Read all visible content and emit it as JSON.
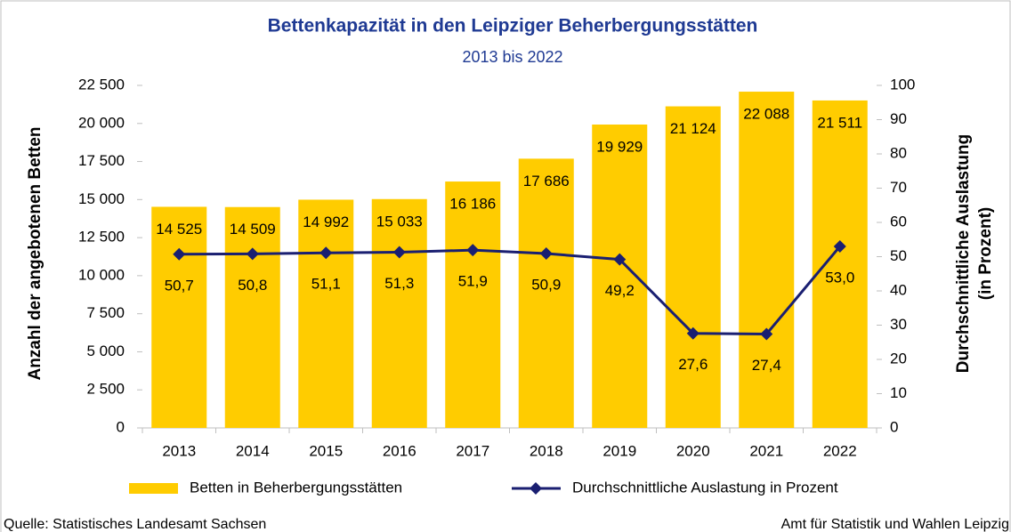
{
  "chart_data": {
    "type": "bar",
    "title": "Bettenkapazität in den Leipziger Beherbergungsstätten",
    "subtitle": "2013 bis 2022",
    "ylabel": "Anzahl der angebotenen Betten",
    "y2label": [
      "Durchschnittliche Auslastung",
      "(in Prozent)"
    ],
    "categories": [
      "2013",
      "2014",
      "2015",
      "2016",
      "2017",
      "2018",
      "2019",
      "2020",
      "2021",
      "2022"
    ],
    "series": [
      {
        "name": "Betten in Beherbergungsstätten",
        "type": "bar",
        "color": "#ffcc00",
        "values": [
          14525,
          14509,
          14992,
          15033,
          16186,
          17686,
          19929,
          21124,
          22088,
          21511
        ],
        "value_labels": [
          "14 525",
          "14 509",
          "14 992",
          "15 033",
          "16 186",
          "17 686",
          "19 929",
          "21 124",
          "22 088",
          "21 511"
        ]
      },
      {
        "name": "Durchschnittliche Auslastung in Prozent",
        "type": "line",
        "axis": "y2",
        "color": "#1a1f71",
        "values": [
          50.7,
          50.8,
          51.1,
          51.3,
          51.9,
          50.9,
          49.2,
          27.6,
          27.4,
          53.0
        ],
        "value_labels": [
          "50,7",
          "50,8",
          "51,1",
          "51,3",
          "51,9",
          "50,9",
          "49,2",
          "27,6",
          "27,4",
          "53,0"
        ]
      }
    ],
    "ylim": [
      0,
      22500
    ],
    "yticks": [
      0,
      {
        "value": 2500,
        "label": "2 500"
      },
      {
        "value": 5000,
        "label": "5 000"
      },
      {
        "value": 7500,
        "label": "7 500"
      },
      {
        "value": 10000,
        "label": "10 000"
      },
      {
        "value": 12500,
        "label": "12 500"
      },
      {
        "value": 15000,
        "label": "15 000"
      },
      {
        "value": 17500,
        "label": "17 500"
      },
      {
        "value": 20000,
        "label": "20 000"
      },
      {
        "value": 22500,
        "label": "22 500"
      }
    ],
    "y2lim": [
      0,
      100
    ],
    "y2ticks": [
      0,
      10,
      20,
      30,
      40,
      50,
      60,
      70,
      80,
      90,
      100
    ],
    "grid": false,
    "legend": "bottom"
  },
  "footer": {
    "source": "Quelle: Statistisches Landesamt Sachsen",
    "credit": "Amt für Statistik und Wahlen Leipzig"
  }
}
